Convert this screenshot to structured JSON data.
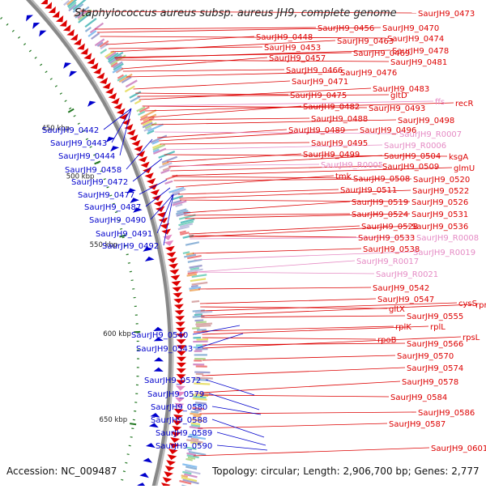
{
  "title": "Staphylococcus aureus subsp. aureus JH9, complete genome",
  "footer": {
    "accession": "Accession: NC_009487",
    "summary": "Topology: circular; Length: 2,906,700 bp; Genes: 2,777"
  },
  "colors": {
    "forward_gene": "#dd0000",
    "reverse_gene": "#0000cc",
    "rna_gene": "#e58ac4",
    "backbone": "#888888",
    "tick": "#227722"
  },
  "scale_labels": [
    "450 kbp",
    "500 kbp",
    "550 kbp",
    "600 kbp",
    "650 kbp"
  ],
  "right_labels": [
    {
      "text": "SaurJH9_0473",
      "type": "gene"
    },
    {
      "text": "SaurJH9_0456",
      "type": "gene"
    },
    {
      "text": "SaurJH9_0470",
      "type": "gene"
    },
    {
      "text": "SaurJH9_0448",
      "type": "gene"
    },
    {
      "text": "SaurJH9_0463",
      "type": "gene"
    },
    {
      "text": "SaurJH9_0474",
      "type": "gene"
    },
    {
      "text": "SaurJH9_0453",
      "type": "gene"
    },
    {
      "text": "SaurJH9_0469",
      "type": "gene"
    },
    {
      "text": "SaurJH9_0478",
      "type": "gene"
    },
    {
      "text": "SaurJH9_0457",
      "type": "gene"
    },
    {
      "text": "SaurJH9_0481",
      "type": "gene"
    },
    {
      "text": "SaurJH9_0466",
      "type": "gene"
    },
    {
      "text": "SaurJH9_0476",
      "type": "gene"
    },
    {
      "text": "SaurJH9_0471",
      "type": "gene"
    },
    {
      "text": "SaurJH9_0483",
      "type": "gene"
    },
    {
      "text": "SaurJH9_0475",
      "type": "gene"
    },
    {
      "text": "gltD",
      "type": "gene"
    },
    {
      "text": "ffs",
      "type": "rna"
    },
    {
      "text": "recR",
      "type": "gene"
    },
    {
      "text": "SaurJH9_0482",
      "type": "gene"
    },
    {
      "text": "SaurJH9_0493",
      "type": "gene"
    },
    {
      "text": "SaurJH9_0488",
      "type": "gene"
    },
    {
      "text": "SaurJH9_0498",
      "type": "gene"
    },
    {
      "text": "SaurJH9_0489",
      "type": "gene"
    },
    {
      "text": "SaurJH9_0496",
      "type": "gene"
    },
    {
      "text": "SaurJH9_R0007",
      "type": "rna"
    },
    {
      "text": "SaurJH9_0495",
      "type": "gene"
    },
    {
      "text": "SaurJH9_R0006",
      "type": "rna"
    },
    {
      "text": "SaurJH9_0499",
      "type": "gene"
    },
    {
      "text": "SaurJH9_0504",
      "type": "gene"
    },
    {
      "text": "ksgA",
      "type": "gene"
    },
    {
      "text": "SaurJH9_R0005",
      "type": "rna"
    },
    {
      "text": "SaurJH9_0509",
      "type": "gene"
    },
    {
      "text": "glmU",
      "type": "gene"
    },
    {
      "text": "tmk",
      "type": "gene"
    },
    {
      "text": "SaurJH9_0508",
      "type": "gene"
    },
    {
      "text": "SaurJH9_0520",
      "type": "gene"
    },
    {
      "text": "SaurJH9_0511",
      "type": "gene"
    },
    {
      "text": "SaurJH9_0522",
      "type": "gene"
    },
    {
      "text": "SaurJH9_0519",
      "type": "gene"
    },
    {
      "text": "SaurJH9_0526",
      "type": "gene"
    },
    {
      "text": "SaurJH9_0524",
      "type": "gene"
    },
    {
      "text": "SaurJH9_0531",
      "type": "gene"
    },
    {
      "text": "SaurJH9_0528",
      "type": "gene"
    },
    {
      "text": "SaurJH9_0536",
      "type": "gene"
    },
    {
      "text": "SaurJH9_0533",
      "type": "gene"
    },
    {
      "text": "SaurJH9_R0008",
      "type": "rna"
    },
    {
      "text": "SaurJH9_0538",
      "type": "gene"
    },
    {
      "text": "SaurJH9_R0019",
      "type": "rna"
    },
    {
      "text": "SaurJH9_R0017",
      "type": "rna"
    },
    {
      "text": "SaurJH9_R0021",
      "type": "rna"
    },
    {
      "text": "SaurJH9_0542",
      "type": "gene"
    },
    {
      "text": "SaurJH9_0547",
      "type": "gene"
    },
    {
      "text": "cysS",
      "type": "gene"
    },
    {
      "text": "rpmG",
      "type": "gene"
    },
    {
      "text": "gltX",
      "type": "gene"
    },
    {
      "text": "SaurJH9_0555",
      "type": "gene"
    },
    {
      "text": "rplK",
      "type": "gene"
    },
    {
      "text": "rplL",
      "type": "gene"
    },
    {
      "text": "rpsL",
      "type": "gene"
    },
    {
      "text": "rpoB",
      "type": "gene"
    },
    {
      "text": "SaurJH9_0566",
      "type": "gene"
    },
    {
      "text": "SaurJH9_0570",
      "type": "gene"
    },
    {
      "text": "SaurJH9_0574",
      "type": "gene"
    },
    {
      "text": "SaurJH9_0578",
      "type": "gene"
    },
    {
      "text": "SaurJH9_0584",
      "type": "gene"
    },
    {
      "text": "SaurJH9_0586",
      "type": "gene"
    },
    {
      "text": "SaurJH9_0587",
      "type": "gene"
    },
    {
      "text": "SaurJH9_0601",
      "type": "gene"
    }
  ],
  "left_labels": [
    {
      "text": "SaurJH9_0442"
    },
    {
      "text": "SaurJH9_0443"
    },
    {
      "text": "SaurJH9_0444"
    },
    {
      "text": "SaurJH9_0458"
    },
    {
      "text": "SaurJH9_0472"
    },
    {
      "text": "SaurJH9_0477"
    },
    {
      "text": "SaurJH9_0487"
    },
    {
      "text": "SaurJH9_0490"
    },
    {
      "text": "SaurJH9_0491"
    },
    {
      "text": "SaurJH9_0492"
    },
    {
      "text": "SaurJH9_0540"
    },
    {
      "text": "SaurJH9_0543"
    },
    {
      "text": "SaurJH9_0572"
    },
    {
      "text": "SaurJH9_0579"
    },
    {
      "text": "SaurJH9_0580"
    },
    {
      "text": "SaurJH9_0588"
    },
    {
      "text": "SaurJH9_0589"
    },
    {
      "text": "SaurJH9_0590"
    }
  ]
}
